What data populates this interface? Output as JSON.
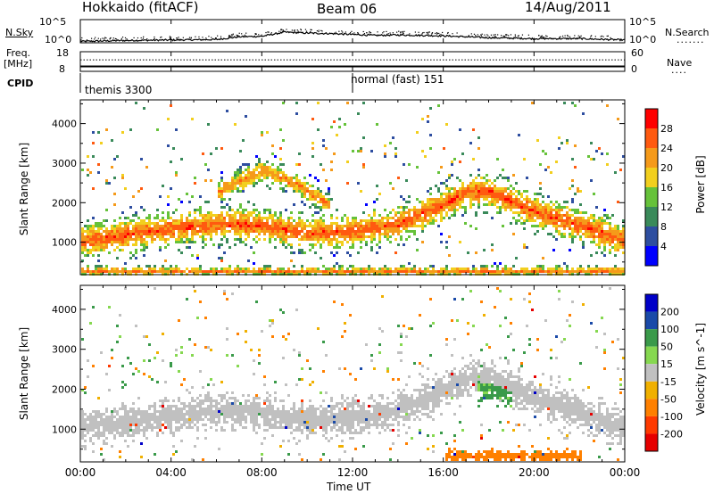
{
  "header": {
    "station": "Hokkaido (fitACF)",
    "beam": "Beam 06",
    "date": "14/Aug/2011"
  },
  "noise_panel": {
    "left_label": "N.Sky",
    "right_label": "N.Search",
    "left_ticks": [
      "10^5",
      "10^0"
    ],
    "right_ticks": [
      "10^5",
      "10^0"
    ]
  },
  "freq_panel": {
    "left_label_1": "Freq.",
    "left_label_2": "[MHz]",
    "right_label": "Nave",
    "left_ticks": [
      "18",
      "8"
    ],
    "right_ticks": [
      "60",
      "0"
    ]
  },
  "cpid_panel": {
    "label": "CPID",
    "segments": [
      {
        "name": "themis 3300",
        "start_hour": 0.0
      },
      {
        "name": "normal (fast) 151",
        "start_hour": 12.0
      }
    ]
  },
  "axes": {
    "ylabel": "Slant Range [km]",
    "xlabel": "Time UT",
    "x_tick_labels": [
      "00:00",
      "04:00",
      "08:00",
      "12:00",
      "16:00",
      "20:00",
      "00:00"
    ],
    "y_tick_labels": [
      "1000",
      "2000",
      "3000",
      "4000"
    ]
  },
  "colors": {
    "power_bins": [
      "#0000ff",
      "#2e4ea0",
      "#3a8a5a",
      "#66c23a",
      "#f2cf1e",
      "#f59a1a",
      "#ff5a10",
      "#ff0000"
    ],
    "velocity_bins": [
      "#0000c8",
      "#1a4aa8",
      "#3a9a4a",
      "#86d850",
      "#c0c0c0",
      "#f0b000",
      "#ff8000",
      "#ff3a00",
      "#e60000"
    ]
  },
  "chart_data": [
    {
      "type": "line",
      "title": "N.Sky / N.Search",
      "x_range_hours": [
        0,
        24
      ],
      "ylim_log10": [
        0,
        5
      ],
      "series": [
        {
          "name": "N.Sky",
          "x": [
            0,
            2,
            4,
            6,
            7,
            8,
            9,
            10,
            11,
            12,
            13,
            14,
            15,
            16,
            17,
            18,
            19,
            20,
            21,
            22,
            24
          ],
          "y_log10": [
            0.3,
            0.5,
            0.6,
            0.7,
            1.3,
            1.4,
            2.3,
            2.1,
            2.0,
            1.8,
            1.6,
            1.7,
            1.6,
            1.5,
            1.3,
            1.1,
            1.0,
            0.9,
            0.9,
            0.9,
            0.6
          ]
        }
      ]
    },
    {
      "type": "line",
      "title": "Freq. / Nave",
      "x_range_hours": [
        0,
        24
      ],
      "freq_ylim": [
        8,
        18
      ],
      "nave_ylim": [
        0,
        60
      ],
      "series": [
        {
          "name": "Freq.",
          "x": [
            0,
            24
          ],
          "y": [
            10.5,
            10.5
          ]
        },
        {
          "name": "Nave",
          "x": [
            0,
            24
          ],
          "y": [
            35,
            35
          ]
        }
      ]
    },
    {
      "type": "heatmap",
      "title": "Power [dB]",
      "x_range_hours": [
        0,
        24
      ],
      "ylim_km": [
        180,
        4600
      ],
      "colorbar": {
        "label": "Power [dB]",
        "tick_labels": [
          "4",
          "8",
          "12",
          "16",
          "20",
          "24",
          "28"
        ],
        "range": [
          0,
          30
        ]
      },
      "bands": [
        {
          "x": [
            0,
            3,
            6,
            8,
            10,
            11,
            12,
            14,
            16,
            17,
            18,
            20,
            22,
            24
          ],
          "center_km": [
            1050,
            1300,
            1500,
            1450,
            1250,
            1300,
            1300,
            1500,
            2000,
            2300,
            2300,
            1800,
            1450,
            1050
          ],
          "width_km": 450,
          "level_db": 28
        },
        {
          "x": [
            6,
            8,
            9.5,
            11
          ],
          "center_km": [
            2300,
            2850,
            2500,
            1950
          ],
          "width_km": 300,
          "level_db": 26
        },
        {
          "x": [
            0,
            24
          ],
          "center_km": [
            300,
            300
          ],
          "width_km": 140,
          "level_db": 26
        }
      ]
    },
    {
      "type": "heatmap",
      "title": "Velocity [m s-1]",
      "x_range_hours": [
        0,
        24
      ],
      "ylim_km": [
        180,
        4600
      ],
      "colorbar": {
        "label": "Velocity [m s^-1]",
        "tick_labels": [
          "200",
          "100",
          "50",
          "15",
          "-15",
          "-50",
          "-100",
          "-200"
        ],
        "range": [
          -250,
          250
        ]
      },
      "bands": [
        {
          "x": [
            0,
            3,
            6,
            8,
            10,
            11,
            12,
            14,
            16,
            17,
            18,
            20,
            22,
            24
          ],
          "center_km": [
            1050,
            1300,
            1500,
            1450,
            1250,
            1300,
            1300,
            1500,
            2000,
            2300,
            2300,
            1800,
            1450,
            1050
          ],
          "width_km": 450,
          "velocity": 0
        },
        {
          "x": [
            17.5,
            19
          ],
          "center_km": [
            2150,
            1900
          ],
          "width_km": 400,
          "velocity": 40
        },
        {
          "x": [
            16,
            22
          ],
          "center_km": [
            350,
            350
          ],
          "width_km": 180,
          "velocity": -60
        }
      ]
    }
  ]
}
